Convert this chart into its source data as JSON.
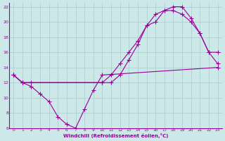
{
  "xlabel": "Windchill (Refroidissement éolien,°C)",
  "bg_color": "#cce8e8",
  "grid_color": "#aacccc",
  "line_color": "#990099",
  "xlim": [
    -0.5,
    23.5
  ],
  "ylim": [
    6,
    22.5
  ],
  "xticks": [
    0,
    1,
    2,
    3,
    4,
    5,
    6,
    7,
    8,
    9,
    10,
    11,
    12,
    13,
    14,
    15,
    16,
    17,
    18,
    19,
    20,
    21,
    22,
    23
  ],
  "yticks": [
    6,
    8,
    10,
    12,
    14,
    16,
    18,
    20,
    22
  ],
  "line1_x": [
    0,
    1,
    2,
    3,
    4,
    5,
    6,
    7,
    8,
    9,
    10,
    23
  ],
  "line1_y": [
    13,
    12,
    11.5,
    10.5,
    9.5,
    7.5,
    6.5,
    6,
    8.5,
    11,
    13,
    14
  ],
  "line2_x": [
    0,
    1,
    10,
    11,
    12,
    13,
    14,
    15,
    16,
    17,
    18,
    19,
    20,
    21,
    22,
    23
  ],
  "line2_y": [
    13,
    12,
    12,
    12,
    13,
    15,
    17,
    19.5,
    20,
    21.5,
    21.5,
    21,
    20,
    18.5,
    16,
    16
  ],
  "line3_x": [
    0,
    1,
    2,
    10,
    11,
    12,
    13,
    14,
    15,
    16,
    17,
    18,
    19,
    20,
    21,
    22,
    23
  ],
  "line3_y": [
    13,
    12,
    12,
    12,
    13,
    14.5,
    16,
    17.5,
    19.5,
    21,
    21.5,
    22,
    22,
    20.5,
    18.5,
    16,
    14.5
  ]
}
